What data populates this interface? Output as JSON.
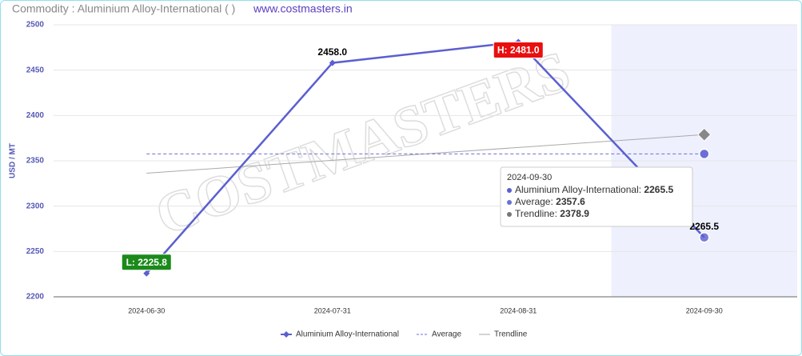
{
  "chart_data": {
    "type": "line",
    "title": "Commodity : Aluminium Alloy-International ( )",
    "subtitle": "www.costmasters.in",
    "watermark": "COSTMASTERS",
    "y_label": "USD / MT",
    "categories": [
      "2024-06-30",
      "2024-07-31",
      "2024-08-31",
      "2024-09-30"
    ],
    "series": [
      {
        "name": "Aluminium Alloy-International",
        "color": "#5b5fd0",
        "values": [
          2225.8,
          2458.0,
          2481.0,
          2265.5
        ],
        "value_labels": [
          "L: 2225.8",
          "2458.0",
          "H: 2481.0",
          "2265.5"
        ]
      },
      {
        "name": "Average",
        "color": "#6b6fd8",
        "values": [
          2357.6,
          2357.6,
          2357.6,
          2357.6
        ]
      },
      {
        "name": "Trendline",
        "color": "#aaaaaa",
        "values": [
          2336.3,
          2350.5,
          2364.7,
          2378.9
        ]
      }
    ],
    "ylim": [
      2200,
      2500
    ],
    "yticks": [
      2200,
      2250,
      2300,
      2350,
      2400,
      2450,
      2500
    ],
    "grid": true,
    "tooltip_index": 3
  }
}
